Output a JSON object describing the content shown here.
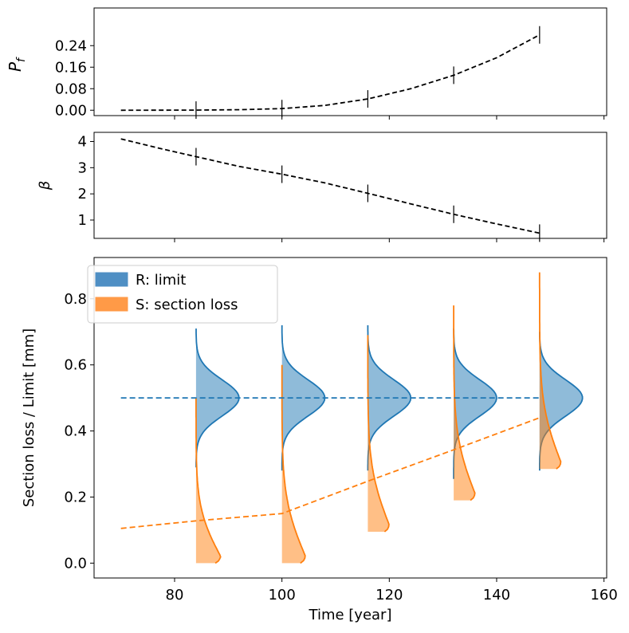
{
  "chart_data": [
    {
      "type": "line",
      "panel": "top",
      "ylabel_main": "P",
      "ylabel_sub": "f",
      "xlim": [
        65,
        160.5
      ],
      "ylim": [
        -0.02,
        0.38
      ],
      "yticks": [
        0.0,
        0.08,
        0.16,
        0.24
      ],
      "ytick_labels": [
        "0.00",
        "0.08",
        "0.16",
        "0.24"
      ],
      "series": [
        {
          "style": "dashed",
          "color": "#000000",
          "x": [
            70,
            76,
            84,
            92,
            100,
            108,
            116,
            124,
            132,
            140,
            148
          ],
          "y": [
            0.0,
            0.0002,
            0.0005,
            0.002,
            0.006,
            0.018,
            0.042,
            0.08,
            0.13,
            0.195,
            0.28
          ]
        }
      ],
      "markers_x": [
        84,
        100,
        116,
        132,
        148
      ],
      "markers_y": [
        0.0005,
        0.006,
        0.042,
        0.13,
        0.28
      ]
    },
    {
      "type": "line",
      "panel": "middle",
      "ylabel": "β",
      "xlim": [
        65,
        160.5
      ],
      "ylim": [
        0.3,
        4.35
      ],
      "yticks": [
        1,
        2,
        3,
        4
      ],
      "ytick_labels": [
        "1",
        "2",
        "3",
        "4"
      ],
      "series": [
        {
          "style": "dashed",
          "color": "#000000",
          "x": [
            70,
            77,
            84,
            92,
            100,
            108,
            116,
            124,
            132,
            140,
            148
          ],
          "y": [
            4.1,
            3.75,
            3.42,
            3.05,
            2.75,
            2.42,
            2.02,
            1.62,
            1.22,
            0.85,
            0.5
          ]
        }
      ],
      "markers_x": [
        84,
        100,
        116,
        132,
        148
      ],
      "markers_y": [
        3.42,
        2.75,
        2.02,
        1.22,
        0.5
      ]
    },
    {
      "type": "area",
      "panel": "bottom",
      "xlabel": "Time [year]",
      "ylabel": "Section loss / Limit [mm]",
      "xlim": [
        65,
        160.5
      ],
      "ylim": [
        -0.045,
        0.925
      ],
      "xticks": [
        80,
        100,
        120,
        140,
        160
      ],
      "xtick_labels": [
        "80",
        "100",
        "120",
        "140",
        "160"
      ],
      "yticks": [
        0.0,
        0.2,
        0.4,
        0.6,
        0.8
      ],
      "ytick_labels": [
        "0.0",
        "0.2",
        "0.4",
        "0.6",
        "0.8"
      ],
      "legend": {
        "placement": "upper-left",
        "entries": [
          {
            "label": "R: limit",
            "color": "#4f8fc4"
          },
          {
            "label": "S: section loss",
            "color": "#ff9a47"
          }
        ]
      },
      "limit_line": {
        "color": "#1f77b4",
        "x": [
          70,
          148
        ],
        "y": 0.5
      },
      "section_loss_line": {
        "color": "#ff7f0e",
        "x": [
          70,
          84,
          100,
          116,
          132,
          148
        ],
        "y": [
          0.105,
          0.128,
          0.15,
          0.248,
          0.343,
          0.44
        ]
      },
      "distributions": [
        {
          "t": 84,
          "r_mean": 0.5,
          "r_lo": 0.29,
          "r_hi": 0.71,
          "r_width": 8,
          "s_lo": 0.0,
          "s_hi": 0.5,
          "s_mode": 0.02,
          "s_width": 4.6
        },
        {
          "t": 100,
          "r_mean": 0.5,
          "r_lo": 0.28,
          "r_hi": 0.72,
          "r_width": 8,
          "s_lo": 0.0,
          "s_hi": 0.6,
          "s_mode": 0.02,
          "s_width": 4.4
        },
        {
          "t": 116,
          "r_mean": 0.5,
          "r_lo": 0.28,
          "r_hi": 0.72,
          "r_width": 8,
          "s_lo": 0.095,
          "s_hi": 0.69,
          "s_mode": 0.115,
          "s_width": 4.0
        },
        {
          "t": 132,
          "r_mean": 0.5,
          "r_lo": 0.255,
          "r_hi": 0.71,
          "r_width": 8,
          "s_lo": 0.19,
          "s_hi": 0.78,
          "s_mode": 0.21,
          "s_width": 4.0
        },
        {
          "t": 148,
          "r_mean": 0.5,
          "r_lo": 0.28,
          "r_hi": 0.7,
          "r_width": 8,
          "s_lo": 0.285,
          "s_hi": 0.88,
          "s_mode": 0.305,
          "s_width": 4.0
        }
      ]
    }
  ]
}
